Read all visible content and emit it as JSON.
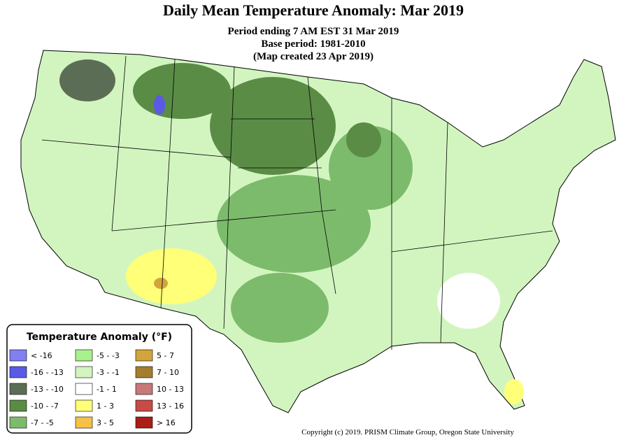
{
  "header": {
    "title": "Daily Mean Temperature Anomaly: Mar 2019",
    "subtitles": [
      "Period ending 7 AM EST 31 Mar 2019",
      "Base period: 1981-2010",
      "(Map created 23 Apr 2019)"
    ]
  },
  "legend": {
    "title": "Temperature Anomaly (°F)",
    "entries": [
      {
        "label": "< -16",
        "color": "#8080f0"
      },
      {
        "label": "-16 - -13",
        "color": "#5a5ae6"
      },
      {
        "label": "-13 - -10",
        "color": "#5b6e55"
      },
      {
        "label": "-10 - -7",
        "color": "#5a8c46"
      },
      {
        "label": "-7 - -5",
        "color": "#7dbb6c"
      },
      {
        "label": "-5 - -3",
        "color": "#a8f08c"
      },
      {
        "label": "-3 - -1",
        "color": "#d2f5c0"
      },
      {
        "label": "-1 - 1",
        "color": "#ffffff"
      },
      {
        "label": "1 - 3",
        "color": "#ffff78"
      },
      {
        "label": "3 - 5",
        "color": "#f5c146"
      },
      {
        "label": "5 - 7",
        "color": "#d2a53c"
      },
      {
        "label": "7 - 10",
        "color": "#a57d2d"
      },
      {
        "label": "10 - 13",
        "color": "#c87878"
      },
      {
        "label": "13 - 16",
        "color": "#c84b46"
      },
      {
        "label": "> 16",
        "color": "#aa1e14"
      }
    ]
  },
  "footer": {
    "copyright": "Copyright (c) 2019. PRISM Climate Group, Oregon State University"
  }
}
